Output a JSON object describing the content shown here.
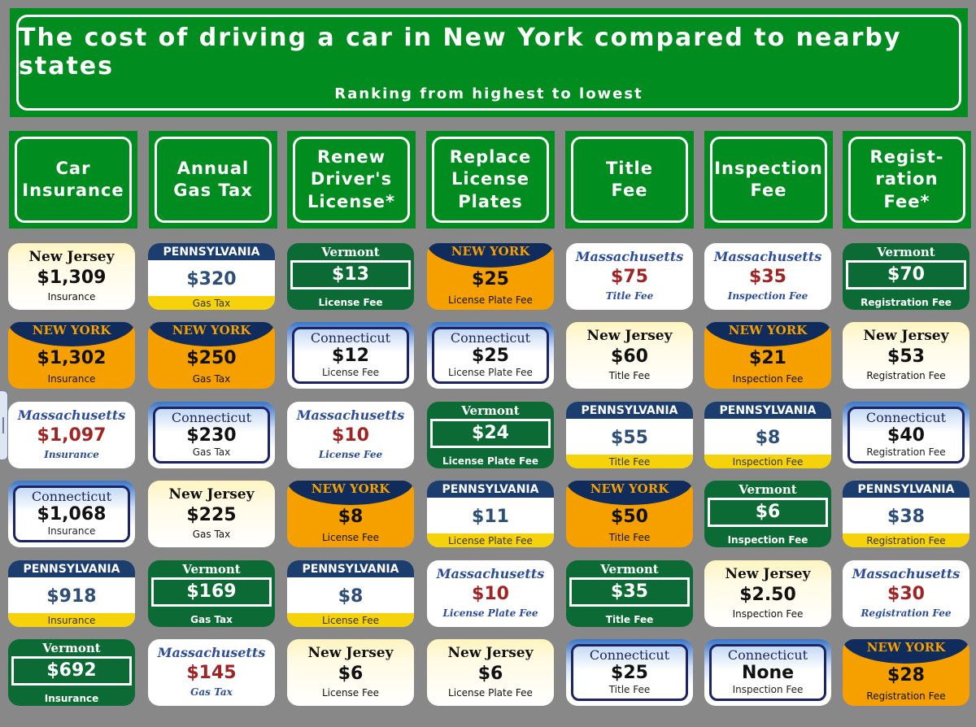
{
  "title": "The cost of driving a car in New York compared to nearby states",
  "subtitle": "Ranking from highest to lowest",
  "headers": [
    "Car\nInsurance",
    "Annual\nGas Tax",
    "Renew\nDriver's\nLicense*",
    "Replace\nLicense\nPlates",
    "Title\nFee",
    "Inspection\nFee",
    "Regist-\nration Fee*"
  ],
  "states": {
    "NJ": "New Jersey",
    "NY": "NEW YORK",
    "PA": "PENNSYLVANIA",
    "VT": "Vermont",
    "MA": "Massachusetts",
    "CT": "Connecticut"
  },
  "colors": {
    "title_green": "#008c1e",
    "background": "#888888",
    "ny_orange": "#f6a000",
    "ny_navy": "#102c5c",
    "pa_blue": "#1c3e6e",
    "pa_yellow": "#f5d20a",
    "vt_green": "#0c6a34",
    "ma_red": "#a02424",
    "ct_navy": "#1c2466"
  },
  "columns": [
    {
      "plates": [
        {
          "state": "NJ",
          "state_label": "New Jersey",
          "value": "$1,309",
          "caption": "Insurance"
        },
        {
          "state": "NY",
          "state_label": "NEW YORK",
          "value": "$1,302",
          "caption": "Insurance"
        },
        {
          "state": "MA",
          "state_label": "Massachusetts",
          "value": "$1,097",
          "caption": "Insurance"
        },
        {
          "state": "CT",
          "state_label": "Connecticut",
          "value": "$1,068",
          "caption": "Insurance"
        },
        {
          "state": "PA",
          "state_label": "PENNSYLVANIA",
          "value": "$918",
          "caption": "Insurance"
        },
        {
          "state": "VT",
          "state_label": "Vermont",
          "value": "$692",
          "caption": "Insurance"
        }
      ]
    },
    {
      "plates": [
        {
          "state": "PA",
          "state_label": "PENNSYLVANIA",
          "value": "$320",
          "caption": "Gas Tax"
        },
        {
          "state": "NY",
          "state_label": "NEW YORK",
          "value": "$250",
          "caption": "Gas Tax"
        },
        {
          "state": "CT",
          "state_label": "Connecticut",
          "value": "$230",
          "caption": "Gas Tax"
        },
        {
          "state": "NJ",
          "state_label": "New Jersey",
          "value": "$225",
          "caption": "Gas Tax"
        },
        {
          "state": "VT",
          "state_label": "Vermont",
          "value": "$169",
          "caption": "Gas Tax"
        },
        {
          "state": "MA",
          "state_label": "Massachusetts",
          "value": "$145",
          "caption": "Gas Tax"
        }
      ]
    },
    {
      "plates": [
        {
          "state": "VT",
          "state_label": "Vermont",
          "value": "$13",
          "caption": "License Fee"
        },
        {
          "state": "CT",
          "state_label": "Connecticut",
          "value": "$12",
          "caption": "License Fee"
        },
        {
          "state": "MA",
          "state_label": "Massachusetts",
          "value": "$10",
          "caption": "License Fee"
        },
        {
          "state": "NY",
          "state_label": "NEW YORK",
          "value": "$8",
          "caption": "License Fee"
        },
        {
          "state": "PA",
          "state_label": "PENNSYLVANIA",
          "value": "$8",
          "caption": "License Fee"
        },
        {
          "state": "NJ",
          "state_label": "New Jersey",
          "value": "$6",
          "caption": "License Fee"
        }
      ]
    },
    {
      "plates": [
        {
          "state": "NY",
          "state_label": "NEW YORK",
          "value": "$25",
          "caption": "License Plate Fee"
        },
        {
          "state": "CT",
          "state_label": "Connecticut",
          "value": "$25",
          "caption": "License Plate Fee"
        },
        {
          "state": "VT",
          "state_label": "Vermont",
          "value": "$24",
          "caption": "License Plate Fee"
        },
        {
          "state": "PA",
          "state_label": "PENNSYLVANIA",
          "value": "$11",
          "caption": "License Plate Fee"
        },
        {
          "state": "MA",
          "state_label": "Massachusetts",
          "value": "$10",
          "caption": "License Plate Fee"
        },
        {
          "state": "NJ",
          "state_label": "New Jersey",
          "value": "$6",
          "caption": "License Plate Fee"
        }
      ]
    },
    {
      "plates": [
        {
          "state": "MA",
          "state_label": "Massachusetts",
          "value": "$75",
          "caption": "Title Fee"
        },
        {
          "state": "NJ",
          "state_label": "New Jersey",
          "value": "$60",
          "caption": "Title Fee"
        },
        {
          "state": "PA",
          "state_label": "PENNSYLVANIA",
          "value": "$55",
          "caption": "Title Fee"
        },
        {
          "state": "NY",
          "state_label": "NEW YORK",
          "value": "$50",
          "caption": "Title Fee"
        },
        {
          "state": "VT",
          "state_label": "Vermont",
          "value": "$35",
          "caption": "Title Fee"
        },
        {
          "state": "CT",
          "state_label": "Connecticut",
          "value": "$25",
          "caption": "Title Fee"
        }
      ]
    },
    {
      "plates": [
        {
          "state": "MA",
          "state_label": "Massachusetts",
          "value": "$35",
          "caption": "Inspection Fee"
        },
        {
          "state": "NY",
          "state_label": "NEW YORK",
          "value": "$21",
          "caption": "Inspection Fee"
        },
        {
          "state": "PA",
          "state_label": "PENNSYLVANIA",
          "value": "$8",
          "caption": "Inspection Fee"
        },
        {
          "state": "VT",
          "state_label": "Vermont",
          "value": "$6",
          "caption": "Inspection Fee"
        },
        {
          "state": "NJ",
          "state_label": "New Jersey",
          "value": "$2.50",
          "caption": "Inspection Fee"
        },
        {
          "state": "CT",
          "state_label": "Connecticut",
          "value": "None",
          "caption": "Inspection Fee"
        }
      ]
    },
    {
      "plates": [
        {
          "state": "VT",
          "state_label": "Vermont",
          "value": "$70",
          "caption": "Registration Fee"
        },
        {
          "state": "NJ",
          "state_label": "New Jersey",
          "value": "$53",
          "caption": "Registration Fee"
        },
        {
          "state": "CT",
          "state_label": "Connecticut",
          "value": "$40",
          "caption": "Registration Fee"
        },
        {
          "state": "PA",
          "state_label": "PENNSYLVANIA",
          "value": "$38",
          "caption": "Registration Fee"
        },
        {
          "state": "MA",
          "state_label": "Massachusetts",
          "value": "$30",
          "caption": "Registration Fee"
        },
        {
          "state": "NY",
          "state_label": "NEW YORK",
          "value": "$28",
          "caption": "Registration Fee"
        }
      ]
    }
  ]
}
